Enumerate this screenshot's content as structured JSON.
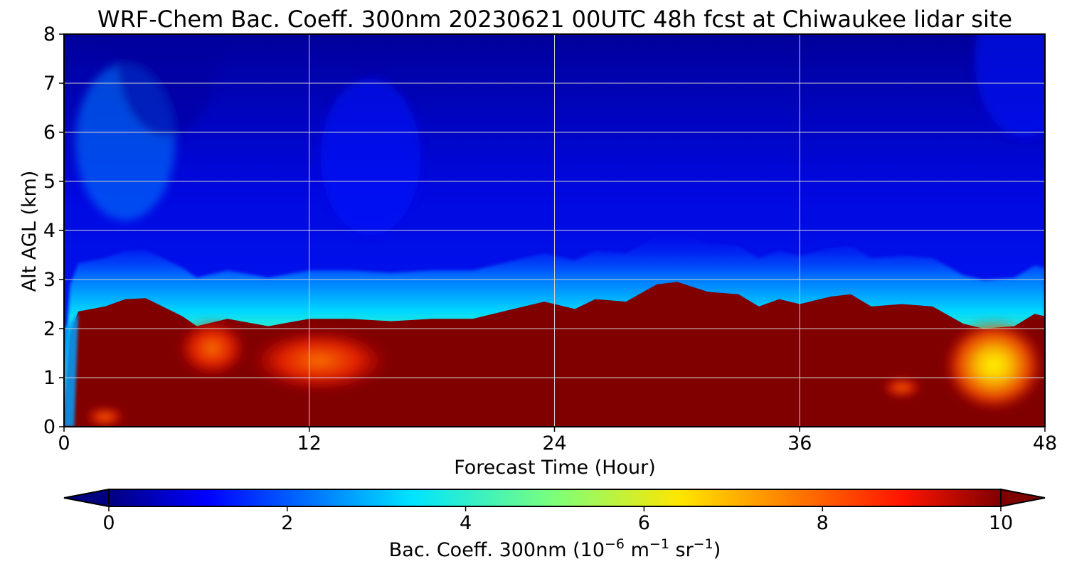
{
  "chart_data": {
    "type": "heatmap",
    "title": "WRF-Chem Bac. Coeff. 300nm  20230621 00UTC 48h fcst at Chiwaukee lidar site",
    "xlabel": "Forecast Time (Hour)",
    "ylabel": "Alt AGL (km)",
    "xlim": [
      0,
      48
    ],
    "ylim": [
      0,
      8
    ],
    "xticks": [
      0,
      12,
      24,
      36,
      48
    ],
    "yticks": [
      0,
      1,
      2,
      3,
      4,
      5,
      6,
      7,
      8
    ],
    "grid": true,
    "colormap": "jet",
    "colorbar": {
      "label_main": "Bac. Coeff. 300nm  (10",
      "label_exp1": "−6",
      "label_mid1": " m",
      "label_exp2": "−1",
      "label_mid2": " sr",
      "label_exp3": "−1",
      "label_end": ")",
      "range": [
        0,
        10
      ],
      "ticks": [
        0,
        2,
        4,
        6,
        8,
        10
      ],
      "extend": "both",
      "orientation": "horizontal"
    },
    "boundary_layer_top_km": [
      [
        0,
        0.0
      ],
      [
        0.3,
        1.9
      ],
      [
        0.7,
        2.35
      ],
      [
        2,
        2.45
      ],
      [
        3,
        2.6
      ],
      [
        4,
        2.62
      ],
      [
        5.8,
        2.25
      ],
      [
        6.5,
        2.05
      ],
      [
        8,
        2.2
      ],
      [
        10,
        2.05
      ],
      [
        12,
        2.2
      ],
      [
        14,
        2.2
      ],
      [
        16,
        2.15
      ],
      [
        18,
        2.2
      ],
      [
        20,
        2.2
      ],
      [
        22,
        2.4
      ],
      [
        23.5,
        2.55
      ],
      [
        25,
        2.4
      ],
      [
        26,
        2.6
      ],
      [
        27.5,
        2.55
      ],
      [
        29,
        2.9
      ],
      [
        30,
        2.95
      ],
      [
        31.5,
        2.75
      ],
      [
        33,
        2.7
      ],
      [
        34,
        2.45
      ],
      [
        35,
        2.6
      ],
      [
        36,
        2.5
      ],
      [
        37.5,
        2.65
      ],
      [
        38.5,
        2.7
      ],
      [
        39.5,
        2.45
      ],
      [
        41,
        2.5
      ],
      [
        42.5,
        2.45
      ],
      [
        44,
        2.1
      ],
      [
        45,
        2.0
      ],
      [
        46.5,
        2.05
      ],
      [
        47.5,
        2.3
      ],
      [
        48,
        2.25
      ]
    ],
    "reduced_value_regions": [
      {
        "x_range": [
          5.5,
          9
        ],
        "y_range": [
          1.0,
          2.2
        ],
        "value": 8.5
      },
      {
        "x_range": [
          9,
          16
        ],
        "y_range": [
          0.7,
          2.0
        ],
        "value": 8.0
      },
      {
        "x_range": [
          1,
          3
        ],
        "y_range": [
          0.0,
          0.4
        ],
        "value": 8.5
      },
      {
        "x_range": [
          40,
          42
        ],
        "y_range": [
          0.6,
          1.0
        ],
        "value": 8.5
      },
      {
        "x_range": [
          43,
          48
        ],
        "y_range": [
          0.3,
          2.2
        ],
        "value": 7.0
      }
    ],
    "free_troposphere_values": [
      {
        "x": 3,
        "y": 5.8,
        "value": 2.5
      },
      {
        "x": 15,
        "y": 5.5,
        "value": 1.5
      },
      {
        "x": 47,
        "y": 7.5,
        "value": 1.5
      },
      {
        "x": 5,
        "y": 7.5,
        "value": 0.3
      }
    ]
  }
}
